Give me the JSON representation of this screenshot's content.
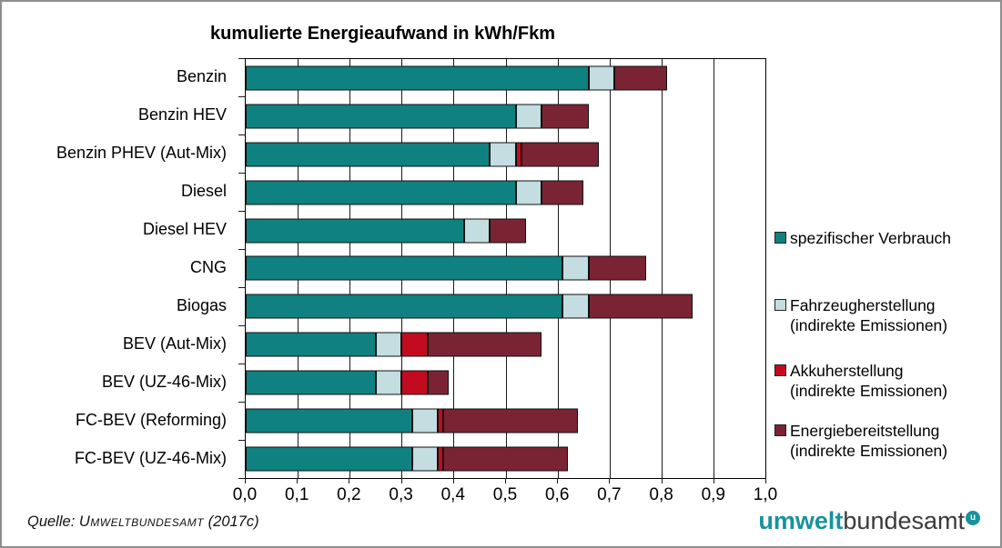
{
  "chart_data": {
    "type": "bar",
    "orientation": "horizontal",
    "stacked": true,
    "title": "kumulierte Energieaufwand in kWh/Fkm",
    "xlim": [
      0,
      1.0
    ],
    "grid": "vertical",
    "x_ticks": [
      "0,0",
      "0,1",
      "0,2",
      "0,3",
      "0,4",
      "0,5",
      "0,6",
      "0,7",
      "0,8",
      "0,9",
      "1,0"
    ],
    "categories": [
      "Benzin",
      "Benzin HEV",
      "Benzin PHEV (Aut-Mix)",
      "Diesel",
      "Diesel HEV",
      "CNG",
      "Biogas",
      "BEV (Aut-Mix)",
      "BEV (UZ-46-Mix)",
      "FC-BEV (Reforming)",
      "FC-BEV (UZ-46-Mix)"
    ],
    "series": [
      {
        "name": "spezifischer Verbrauch",
        "color": "#0e8180",
        "values": [
          0.66,
          0.52,
          0.47,
          0.52,
          0.42,
          0.61,
          0.61,
          0.25,
          0.25,
          0.32,
          0.32
        ]
      },
      {
        "name": "Fahrzeugherstellung (indirekte Emissionen)",
        "color": "#c3dde0",
        "values": [
          0.05,
          0.05,
          0.05,
          0.05,
          0.05,
          0.05,
          0.05,
          0.05,
          0.05,
          0.05,
          0.05
        ]
      },
      {
        "name": "Akkuherstellung (indirekte Emissionen)",
        "color": "#c30b20",
        "values": [
          0,
          0,
          0.01,
          0,
          0,
          0,
          0,
          0.05,
          0.05,
          0.01,
          0.01
        ]
      },
      {
        "name": "Energiebereitstellung (indirekte Emissionen)",
        "color": "#7a2433",
        "values": [
          0.1,
          0.09,
          0.15,
          0.08,
          0.07,
          0.11,
          0.2,
          0.22,
          0.04,
          0.26,
          0.24
        ]
      }
    ],
    "totals": [
      0.81,
      0.66,
      0.68,
      0.65,
      0.54,
      0.77,
      0.86,
      0.57,
      0.39,
      0.64,
      0.62
    ]
  },
  "legend": {
    "position": "right",
    "entries": [
      {
        "color": "#0e8180",
        "label_lines": [
          "spezifischer Verbrauch"
        ]
      },
      {
        "color": "#c3dde0",
        "label_lines": [
          "Fahrzeugherstellung",
          "(indirekte Emissionen)"
        ]
      },
      {
        "color": "#c30b20",
        "label_lines": [
          "Akkuherstellung",
          "(indirekte Emissionen)"
        ]
      },
      {
        "color": "#7a2433",
        "label_lines": [
          "Energiebereitstellung",
          "(indirekte Emissionen)"
        ]
      }
    ]
  },
  "footer": {
    "prefix": "Quelle: ",
    "source": "Umweltbundesamt",
    "year": " (2017c)"
  },
  "logo": {
    "part1": "umwelt",
    "part2": "bundesamt",
    "badge": "u",
    "color": "#17939b"
  }
}
